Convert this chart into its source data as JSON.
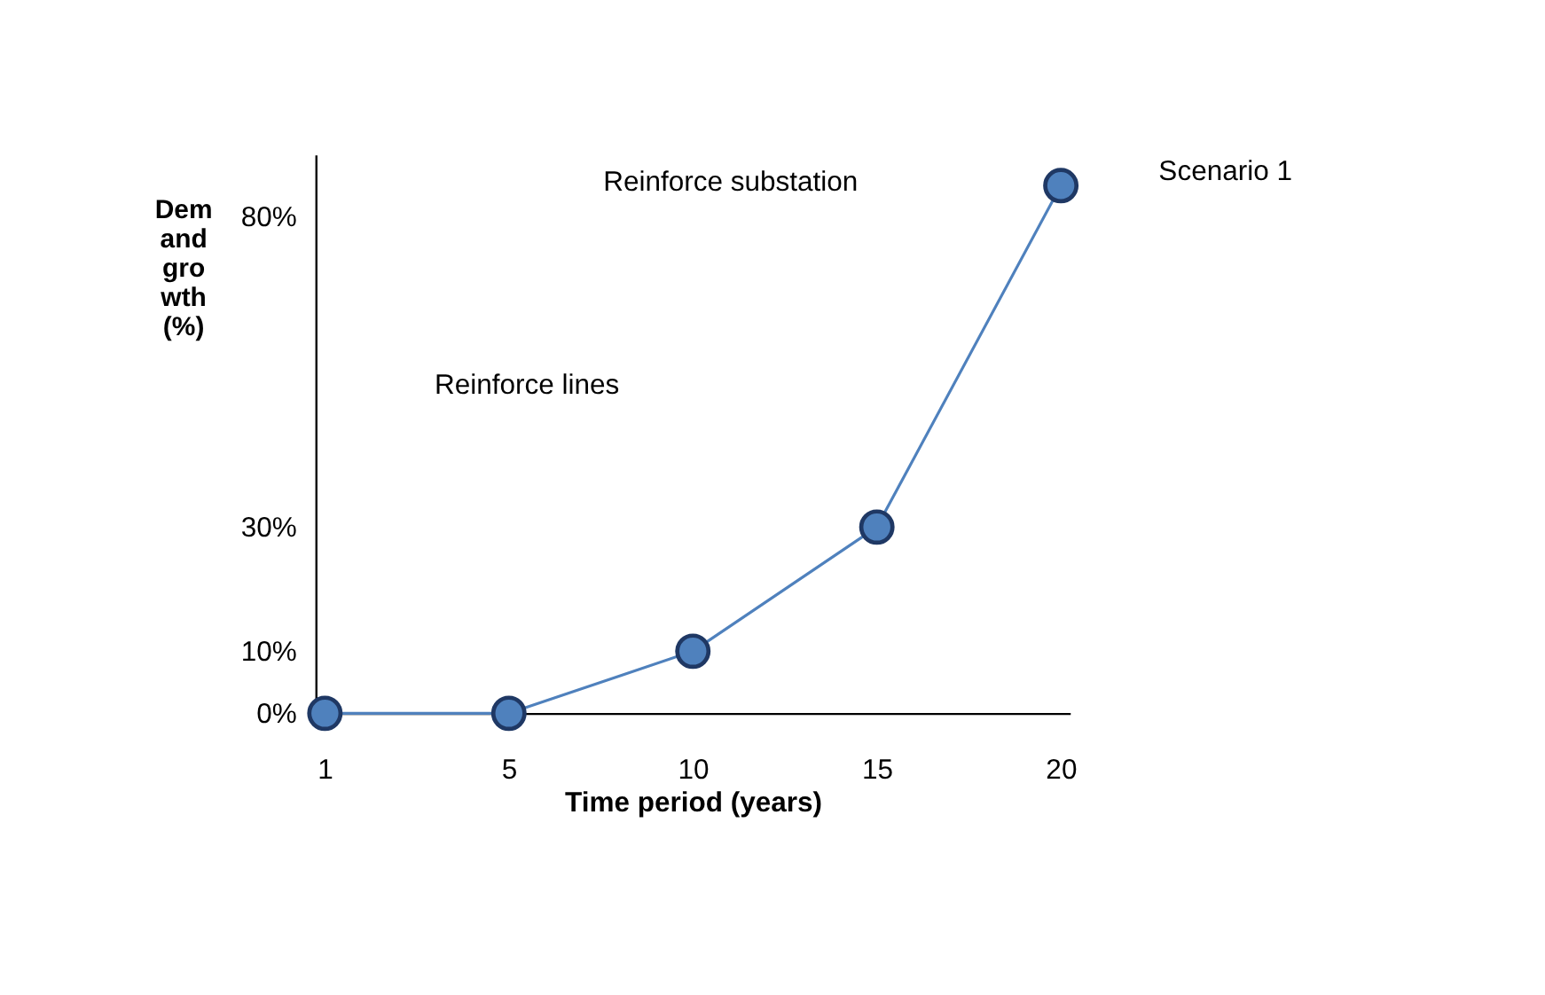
{
  "chart_data": {
    "type": "line",
    "xlabel": "Time period (years)",
    "ylabel": "Demand growth (%)",
    "categories": [
      "1",
      "5",
      "10",
      "15",
      "20"
    ],
    "series": [
      {
        "name": "Scenario 1",
        "color": "#4f81bd",
        "values": [
          0,
          0,
          10,
          30,
          85
        ]
      }
    ],
    "ylim": [
      0,
      90
    ],
    "yticks": [
      {
        "value": 0,
        "label": "0%"
      },
      {
        "value": 10,
        "label": "10%"
      },
      {
        "value": 30,
        "label": "30%"
      },
      {
        "value": 80,
        "label": "80%"
      }
    ],
    "marker": "circle",
    "line_style": "solid",
    "grid": false,
    "legend": false,
    "annotations": [
      "Reinforce substation",
      "Reinforce lines"
    ]
  }
}
